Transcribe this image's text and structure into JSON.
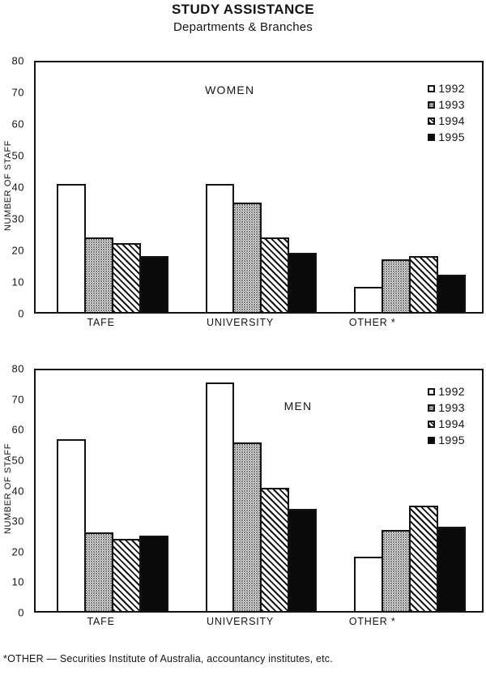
{
  "header": {
    "title": "STUDY ASSISTANCE",
    "subtitle": "Departments & Branches"
  },
  "footnote": "*OTHER — Securities Institute of Australia, accountancy institutes, etc.",
  "colors": {
    "ink": "#141414",
    "background": "#ffffff",
    "bar_solid": "#0a0a0a"
  },
  "chart_data": [
    {
      "type": "bar",
      "title": "WOMEN",
      "xlabel": "",
      "ylabel": "NUMBER OF STAFF",
      "ylim": [
        0,
        80
      ],
      "ytick_step": 10,
      "grid": false,
      "legend_position": "top-right",
      "categories": [
        "TAFE",
        "UNIVERSITY",
        "OTHER *"
      ],
      "series": [
        {
          "name": "1992",
          "pattern": "open",
          "values": [
            41,
            41,
            8
          ]
        },
        {
          "name": "1993",
          "pattern": "stipple",
          "values": [
            24,
            35,
            17
          ]
        },
        {
          "name": "1994",
          "pattern": "hatch",
          "values": [
            22,
            24,
            18
          ]
        },
        {
          "name": "1995",
          "pattern": "solid",
          "values": [
            18,
            19,
            12
          ]
        }
      ]
    },
    {
      "type": "bar",
      "title": "MEN",
      "xlabel": "",
      "ylabel": "NUMBER OF STAFF",
      "ylim": [
        0,
        80
      ],
      "ytick_step": 10,
      "grid": false,
      "legend_position": "top-right",
      "categories": [
        "TAFE",
        "UNIVERSITY",
        "OTHER *"
      ],
      "series": [
        {
          "name": "1992",
          "pattern": "open",
          "values": [
            57,
            76,
            18
          ]
        },
        {
          "name": "1993",
          "pattern": "stipple",
          "values": [
            26,
            56,
            27
          ]
        },
        {
          "name": "1994",
          "pattern": "hatch",
          "values": [
            24,
            41,
            35
          ]
        },
        {
          "name": "1995",
          "pattern": "solid",
          "values": [
            25,
            34,
            28
          ]
        }
      ]
    }
  ]
}
